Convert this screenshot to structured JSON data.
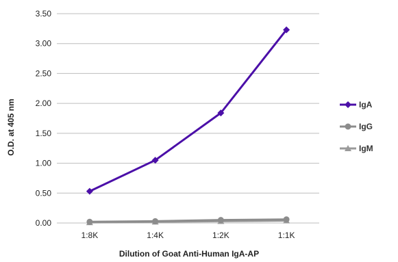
{
  "chart_data": {
    "type": "line",
    "categories": [
      "1:8K",
      "1:4K",
      "1:2K",
      "1:1K"
    ],
    "series": [
      {
        "name": "IgA",
        "values": [
          0.53,
          1.05,
          1.84,
          3.23
        ],
        "color": "#4B0FA8",
        "marker": "diamond"
      },
      {
        "name": "IgG",
        "values": [
          0.02,
          0.03,
          0.05,
          0.06
        ],
        "color": "#8C8C8C",
        "marker": "circle"
      },
      {
        "name": "IgM",
        "values": [
          0.01,
          0.02,
          0.03,
          0.04
        ],
        "color": "#9A9A9A",
        "marker": "triangle"
      }
    ],
    "xlabel": "Dilution of Goat Anti-Human IgA-AP",
    "ylabel": "O.D. at 405 nm",
    "ylim": [
      0,
      3.5
    ],
    "yticks": [
      "0.00",
      "0.50",
      "1.00",
      "1.50",
      "2.00",
      "2.50",
      "3.00",
      "3.50"
    ],
    "grid": true,
    "legend": "right"
  }
}
